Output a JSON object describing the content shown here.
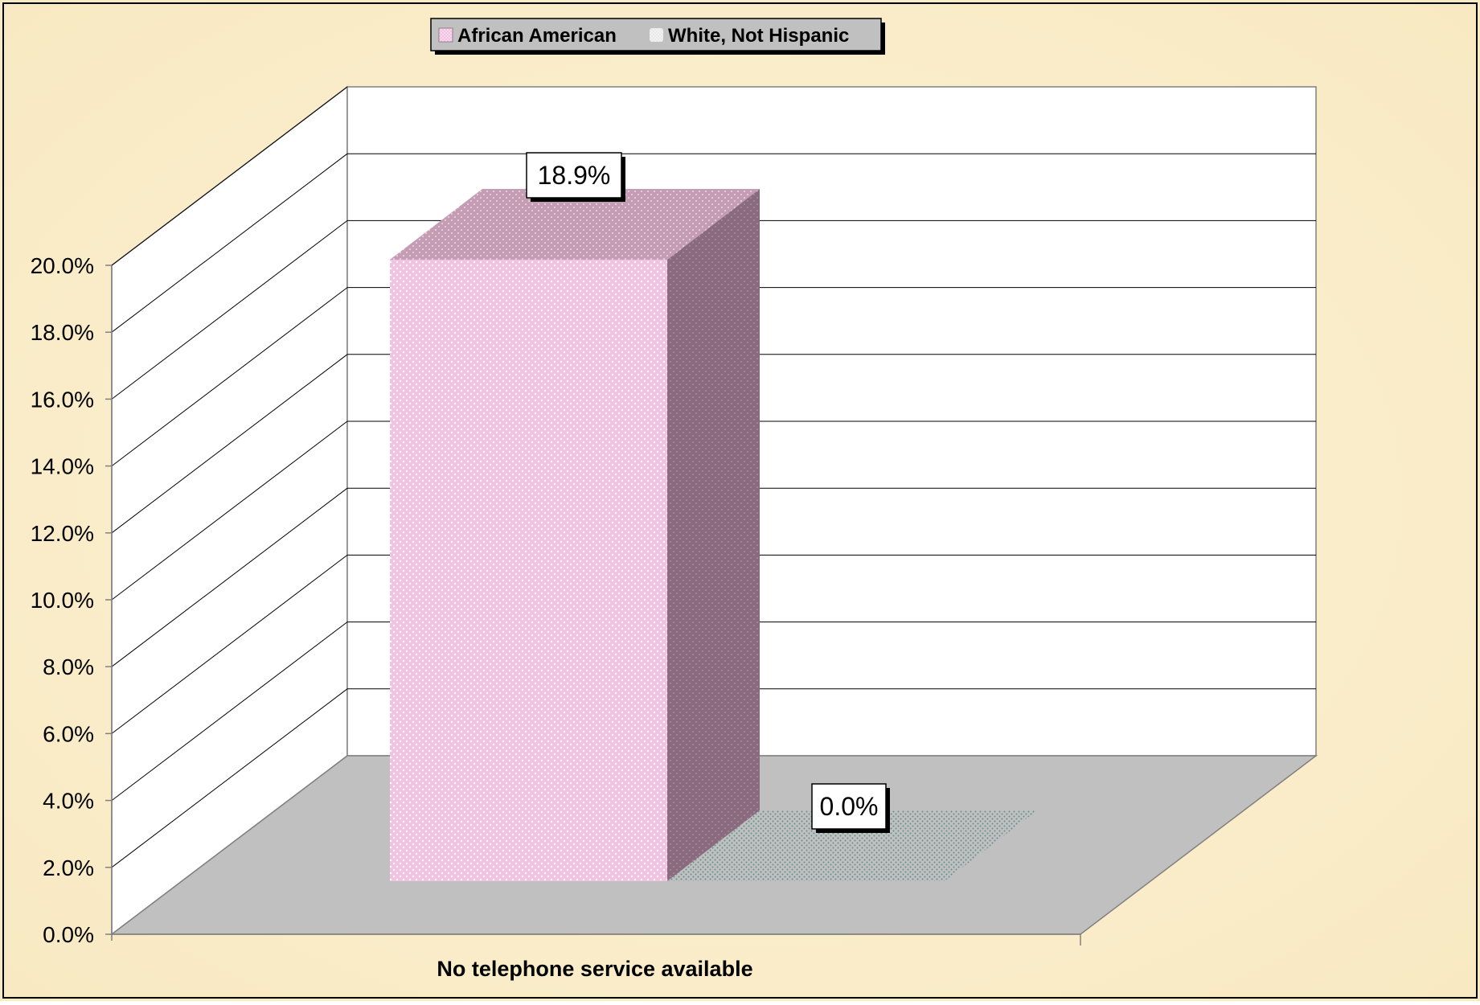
{
  "chart_data": {
    "type": "bar",
    "categories": [
      "No telephone service available"
    ],
    "series": [
      {
        "name": "African American",
        "values": [
          18.9
        ]
      },
      {
        "name": "White, Not Hispanic",
        "values": [
          0.0
        ]
      }
    ],
    "data_labels": [
      "18.9%",
      "0.0%"
    ],
    "ylim": [
      0,
      20
    ],
    "y_ticks": [
      0,
      2,
      4,
      6,
      8,
      10,
      12,
      14,
      16,
      18,
      20
    ],
    "y_tick_labels": [
      "0.0%",
      "2.0%",
      "4.0%",
      "6.0%",
      "8.0%",
      "10.0%",
      "12.0%",
      "14.0%",
      "16.0%",
      "18.0%",
      "20.0%"
    ],
    "xlabel": "No telephone service available",
    "grid": true,
    "legend_position": "top",
    "colors": {
      "background": "#fbf0cf",
      "wall": "#ffffff",
      "floor": "#c0c0c0",
      "series1_front": "#f4c6e4",
      "series1_top": "#c49cb4",
      "series1_side": "#8a6a7e",
      "series2_dots": "#6f9c96"
    }
  }
}
